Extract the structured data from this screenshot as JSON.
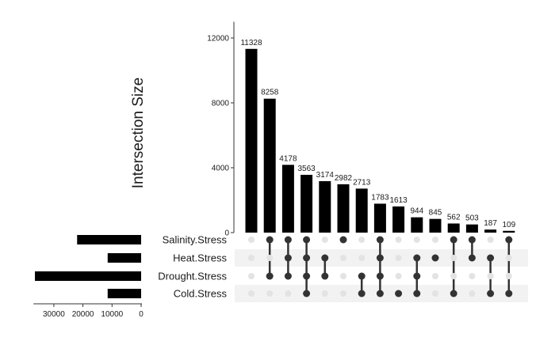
{
  "chart_data": {
    "type": "upset",
    "ylabel": "Intersection Size",
    "ylim": [
      0,
      13000
    ],
    "yticks": [
      0,
      4000,
      8000,
      12000
    ],
    "sets": [
      "Salinity.Stress",
      "Heat.Stress",
      "Drought.Stress",
      "Cold.Stress"
    ],
    "set_sizes": [
      {
        "set": "Salinity.Stress",
        "size": 22000
      },
      {
        "set": "Heat.Stress",
        "size": 11500
      },
      {
        "set": "Drought.Stress",
        "size": 36500
      },
      {
        "set": "Cold.Stress",
        "size": 11500
      }
    ],
    "set_size_ticks": [
      30000,
      20000,
      10000,
      0
    ],
    "set_size_xlim": [
      0,
      37000
    ],
    "intersections": [
      {
        "value": 11328,
        "members": []
      },
      {
        "value": 8258,
        "members": [
          "Salinity.Stress",
          "Drought.Stress"
        ]
      },
      {
        "value": 4178,
        "members": [
          "Salinity.Stress",
          "Heat.Stress",
          "Drought.Stress"
        ]
      },
      {
        "value": 3563,
        "members": [
          "Salinity.Stress",
          "Heat.Stress",
          "Drought.Stress",
          "Cold.Stress"
        ]
      },
      {
        "value": 3174,
        "members": [
          "Heat.Stress",
          "Drought.Stress"
        ]
      },
      {
        "value": 2982,
        "members": [
          "Salinity.Stress"
        ]
      },
      {
        "value": 2713,
        "members": [
          "Drought.Stress",
          "Cold.Stress"
        ]
      },
      {
        "value": 1783,
        "members": [
          "Salinity.Stress",
          "Heat.Stress",
          "Drought.Stress",
          "Cold.Stress"
        ]
      },
      {
        "value": 1613,
        "members": [
          "Cold.Stress"
        ]
      },
      {
        "value": 944,
        "members": [
          "Heat.Stress",
          "Drought.Stress",
          "Cold.Stress"
        ]
      },
      {
        "value": 845,
        "members": [
          "Heat.Stress"
        ]
      },
      {
        "value": 562,
        "members": [
          "Salinity.Stress",
          "Cold.Stress"
        ]
      },
      {
        "value": 503,
        "members": [
          "Salinity.Stress",
          "Heat.Stress"
        ]
      },
      {
        "value": 187,
        "members": [
          "Heat.Stress",
          "Cold.Stress"
        ]
      },
      {
        "value": 109,
        "members": [
          "Salinity.Stress",
          "Cold.Stress"
        ]
      }
    ],
    "colors": {
      "bar": "#000000",
      "dot_active": "#333333",
      "dot_inactive": "#e3e3e3",
      "stripe": "#f2f2f2",
      "axis": "#333333"
    },
    "grid": false
  }
}
